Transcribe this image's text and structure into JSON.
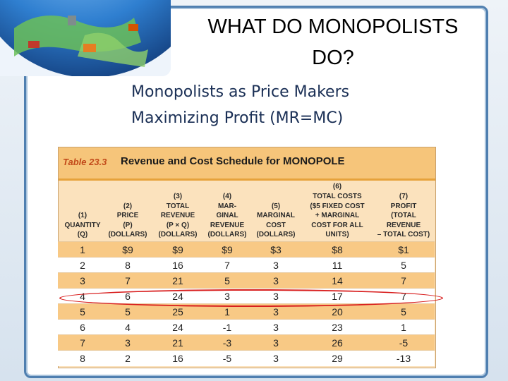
{
  "slide": {
    "title": "WHAT DO MONOPOLISTS DO?",
    "bullets": [
      "Monopolists as Price Makers",
      "Maximizing Profit (MR=MC)"
    ]
  },
  "table": {
    "number": "Table 23.3",
    "name": "Revenue and Cost Schedule for MONOPOLE",
    "headers": [
      "(1) QUANTITY (Q)",
      "(2) PRICE (P) (DOLLARS)",
      "(3) TOTAL REVENUE (P × Q) (DOLLARS)",
      "(4) MAR- GINAL REVENUE (DOLLARS)",
      "(5) MARGINAL COST (DOLLARS)",
      "(6) TOTAL COSTS ($5 FIXED COST + MARGINAL COST FOR ALL UNITS)",
      "(7) PROFIT (TOTAL REVENUE – TOTAL COST)"
    ],
    "rows": [
      [
        "1",
        "$9",
        "$9",
        "$9",
        "$3",
        "$8",
        "$1"
      ],
      [
        "2",
        "8",
        "16",
        "7",
        "3",
        "11",
        "5"
      ],
      [
        "3",
        "7",
        "21",
        "5",
        "3",
        "14",
        "7"
      ],
      [
        "4",
        "6",
        "24",
        "3",
        "3",
        "17",
        "7"
      ],
      [
        "5",
        "5",
        "25",
        "1",
        "3",
        "20",
        "5"
      ],
      [
        "6",
        "4",
        "24",
        "-1",
        "3",
        "23",
        "1"
      ],
      [
        "7",
        "3",
        "21",
        "-3",
        "3",
        "26",
        "-5"
      ],
      [
        "8",
        "2",
        "16",
        "-5",
        "3",
        "29",
        "-13"
      ]
    ],
    "highlighted_row": 3
  },
  "colors": {
    "accent": "#4f7fb0",
    "table_header": "#f6c57a",
    "row_alt": "#f8c985",
    "highlight": "#d81e1e"
  }
}
